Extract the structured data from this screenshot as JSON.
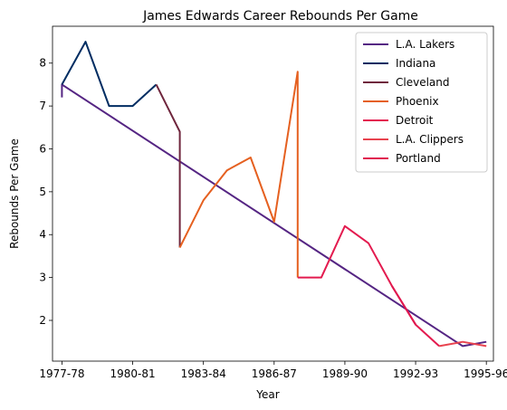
{
  "chart_data": {
    "type": "line",
    "title": "James Edwards  Career Rebounds Per Game",
    "xlabel": "Year",
    "ylabel": "Rebounds Per Game",
    "x_ticks": [
      "1977-78",
      "1980-81",
      "1983-84",
      "1986-87",
      "1989-90",
      "1992-93",
      "1995-96"
    ],
    "x_range": [
      -0.4,
      18.3
    ],
    "y_ticks": [
      2,
      3,
      4,
      5,
      6,
      7,
      8
    ],
    "y_range": [
      1.05,
      8.86
    ],
    "legend_position": "top-right",
    "series": [
      {
        "name": "L.A. Lakers",
        "color": "#552583",
        "points": [
          [
            0,
            7.2
          ],
          [
            0,
            7.5
          ],
          [
            17,
            1.4
          ],
          [
            18,
            1.5
          ]
        ]
      },
      {
        "name": "Indiana",
        "color": "#002d62",
        "points": [
          [
            0,
            7.5
          ],
          [
            1,
            8.5
          ],
          [
            2,
            7.0
          ],
          [
            3,
            7.0
          ],
          [
            4,
            7.5
          ]
        ]
      },
      {
        "name": "Cleveland",
        "color": "#6f263d",
        "points": [
          [
            4,
            7.5
          ],
          [
            5,
            6.4
          ],
          [
            5,
            3.7
          ]
        ]
      },
      {
        "name": "Phoenix",
        "color": "#e56020",
        "points": [
          [
            5,
            3.7
          ],
          [
            6,
            4.8
          ],
          [
            7,
            5.5
          ],
          [
            8,
            5.8
          ],
          [
            9,
            4.3
          ],
          [
            10,
            7.8
          ],
          [
            10,
            3.0
          ]
        ]
      },
      {
        "name": "Detroit",
        "color": "#e31b4f",
        "points": [
          [
            10,
            3.0
          ],
          [
            11,
            3.0
          ],
          [
            12,
            4.2
          ],
          [
            13,
            3.8
          ],
          [
            14,
            2.8
          ],
          [
            15,
            1.9
          ],
          [
            16,
            1.4
          ]
        ]
      },
      {
        "name": "L.A. Clippers",
        "color": "#e8434f",
        "points": [
          [
            16,
            1.4
          ],
          [
            17,
            1.5
          ],
          [
            18,
            1.4
          ]
        ]
      },
      {
        "name": "Portland",
        "color": "#e0174e",
        "points": [
          [
            14,
            2.8
          ],
          [
            15,
            1.9
          ]
        ]
      }
    ]
  }
}
